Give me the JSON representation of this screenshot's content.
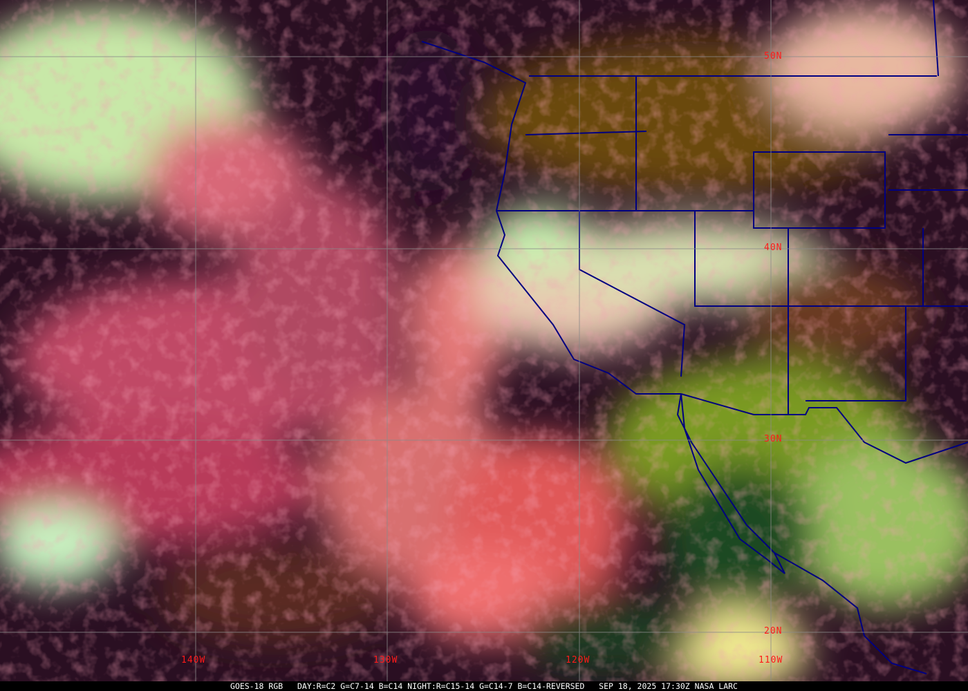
{
  "caption": {
    "satellite": "GOES-18 RGB",
    "recipe": "DAY:R=C2 G=C7-14 B=C14 NIGHT:R=C15-14 G=C14-7 B=C14-REVERSED",
    "datetime": "SEP 18, 2025 17:30Z",
    "credit": "NASA LARC"
  },
  "grid": {
    "latitudes": [
      "50N",
      "40N",
      "30N",
      "20N"
    ],
    "longitudes": [
      "140W",
      "130W",
      "120W",
      "110W"
    ],
    "label_color": "#ff1a1a",
    "line_color": "#8a8a8a"
  },
  "colors": {
    "boundaries": "#000080",
    "cloud_pink": "#e0607a",
    "cloud_green": "#b8f0a0",
    "ocean_dark": "#2a0f22",
    "land_brown": "#8a5a10",
    "land_green": "#7a9a20"
  }
}
